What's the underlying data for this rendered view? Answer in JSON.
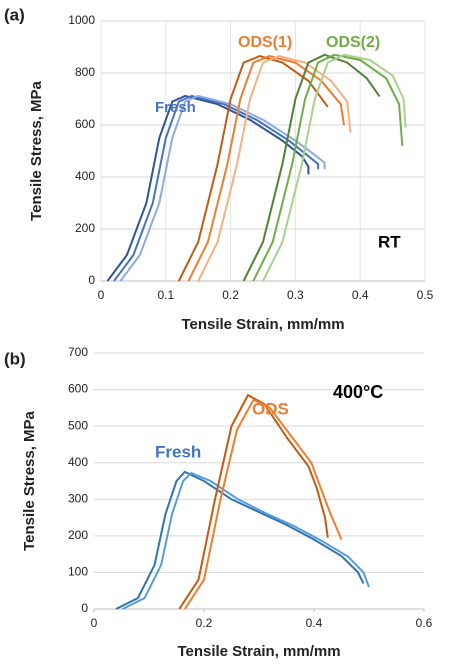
{
  "chart_data": [
    {
      "type": "line",
      "panel": "(a)",
      "xlabel": "Tensile Strain, mm/mm",
      "ylabel": "Tensile Stress, MPa",
      "xlim": [
        0,
        0.5
      ],
      "xticks": [
        0,
        0.1,
        0.2,
        0.3,
        0.4,
        0.5
      ],
      "ylim": [
        0,
        1000
      ],
      "yticks": [
        0,
        200,
        400,
        600,
        800,
        1000
      ],
      "grid": true,
      "xgrid": true,
      "annotations": [
        {
          "text": "Fresh",
          "color": "#4472c4"
        },
        {
          "text": "ODS(1)",
          "color": "#ed7d31"
        },
        {
          "text": "ODS(2)",
          "color": "#70ad47"
        },
        {
          "text": "RT",
          "color": "#000000"
        }
      ],
      "series": [
        {
          "color": "#2f5597",
          "x": [
            0.01,
            0.04,
            0.07,
            0.09,
            0.11,
            0.13,
            0.18,
            0.23,
            0.28,
            0.31,
            0.32,
            0.32
          ],
          "values": [
            0,
            100,
            300,
            550,
            690,
            712,
            680,
            620,
            540,
            480,
            440,
            410
          ]
        },
        {
          "color": "#4472c4",
          "x": [
            0.02,
            0.05,
            0.08,
            0.1,
            0.12,
            0.14,
            0.19,
            0.24,
            0.29,
            0.32,
            0.335,
            0.335
          ],
          "values": [
            0,
            100,
            300,
            550,
            690,
            712,
            680,
            620,
            540,
            480,
            450,
            430
          ]
        },
        {
          "color": "#8faadc",
          "x": [
            0.03,
            0.06,
            0.09,
            0.11,
            0.13,
            0.15,
            0.2,
            0.25,
            0.3,
            0.33,
            0.345,
            0.345
          ],
          "values": [
            0,
            100,
            300,
            550,
            690,
            712,
            680,
            620,
            540,
            485,
            455,
            430
          ]
        },
        {
          "color": "#c55a11",
          "x": [
            0.12,
            0.15,
            0.18,
            0.2,
            0.22,
            0.245,
            0.28,
            0.32,
            0.35
          ],
          "values": [
            0,
            150,
            450,
            700,
            840,
            865,
            840,
            770,
            670
          ]
        },
        {
          "color": "#ed7d31",
          "x": [
            0.135,
            0.165,
            0.195,
            0.215,
            0.235,
            0.26,
            0.3,
            0.34,
            0.37,
            0.375
          ],
          "values": [
            0,
            150,
            450,
            700,
            840,
            865,
            840,
            770,
            680,
            600
          ]
        },
        {
          "color": "#f4b183",
          "x": [
            0.15,
            0.18,
            0.21,
            0.23,
            0.25,
            0.275,
            0.315,
            0.355,
            0.38,
            0.385
          ],
          "values": [
            0,
            150,
            450,
            700,
            840,
            865,
            840,
            770,
            690,
            570
          ]
        },
        {
          "color": "#548235",
          "x": [
            0.22,
            0.25,
            0.28,
            0.3,
            0.32,
            0.345,
            0.38,
            0.41,
            0.43
          ],
          "values": [
            0,
            150,
            450,
            700,
            840,
            870,
            840,
            780,
            710
          ]
        },
        {
          "color": "#70ad47",
          "x": [
            0.235,
            0.265,
            0.295,
            0.315,
            0.335,
            0.36,
            0.4,
            0.44,
            0.46,
            0.465
          ],
          "values": [
            0,
            150,
            450,
            700,
            840,
            870,
            850,
            780,
            680,
            520
          ]
        },
        {
          "color": "#a9d18e",
          "x": [
            0.25,
            0.28,
            0.31,
            0.33,
            0.35,
            0.375,
            0.415,
            0.45,
            0.467,
            0.47
          ],
          "values": [
            0,
            150,
            450,
            700,
            840,
            870,
            850,
            790,
            700,
            590
          ]
        }
      ]
    },
    {
      "type": "line",
      "panel": "(b)",
      "xlabel": "Tensile Strain, mm/mm",
      "ylabel": "Tensile Stress, MPa",
      "xlim": [
        0,
        0.6
      ],
      "xticks": [
        0,
        0.2,
        0.4,
        0.6
      ],
      "ylim": [
        0,
        700
      ],
      "yticks": [
        0,
        100,
        200,
        300,
        400,
        500,
        600,
        700
      ],
      "grid": true,
      "xgrid": false,
      "annotations": [
        {
          "text": "Fresh",
          "color": "#4472c4"
        },
        {
          "text": "ODS",
          "color": "#ed7d31"
        },
        {
          "text": "400°C",
          "color": "#000000"
        }
      ],
      "series": [
        {
          "color": "#2e75b6",
          "x": [
            0.04,
            0.08,
            0.11,
            0.13,
            0.15,
            0.165,
            0.2,
            0.25,
            0.3,
            0.35,
            0.4,
            0.45,
            0.48,
            0.49
          ],
          "values": [
            0,
            30,
            120,
            260,
            350,
            375,
            350,
            300,
            265,
            230,
            190,
            145,
            100,
            70
          ]
        },
        {
          "color": "#5b9bd5",
          "x": [
            0.052,
            0.092,
            0.122,
            0.142,
            0.162,
            0.177,
            0.212,
            0.262,
            0.312,
            0.362,
            0.412,
            0.462,
            0.49,
            0.5
          ],
          "values": [
            0,
            30,
            120,
            260,
            350,
            372,
            350,
            300,
            262,
            228,
            188,
            143,
            100,
            60
          ]
        },
        {
          "color": "#c55a11",
          "x": [
            0.155,
            0.19,
            0.22,
            0.25,
            0.28,
            0.31,
            0.35,
            0.39,
            0.405,
            0.42,
            0.425
          ],
          "values": [
            0,
            80,
            300,
            500,
            585,
            560,
            470,
            390,
            330,
            250,
            195
          ]
        },
        {
          "color": "#ed7d31",
          "x": [
            0.165,
            0.2,
            0.23,
            0.26,
            0.29,
            0.32,
            0.36,
            0.395,
            0.41,
            0.43,
            0.45
          ],
          "values": [
            0,
            80,
            300,
            490,
            572,
            550,
            470,
            400,
            340,
            260,
            190
          ]
        }
      ]
    }
  ]
}
